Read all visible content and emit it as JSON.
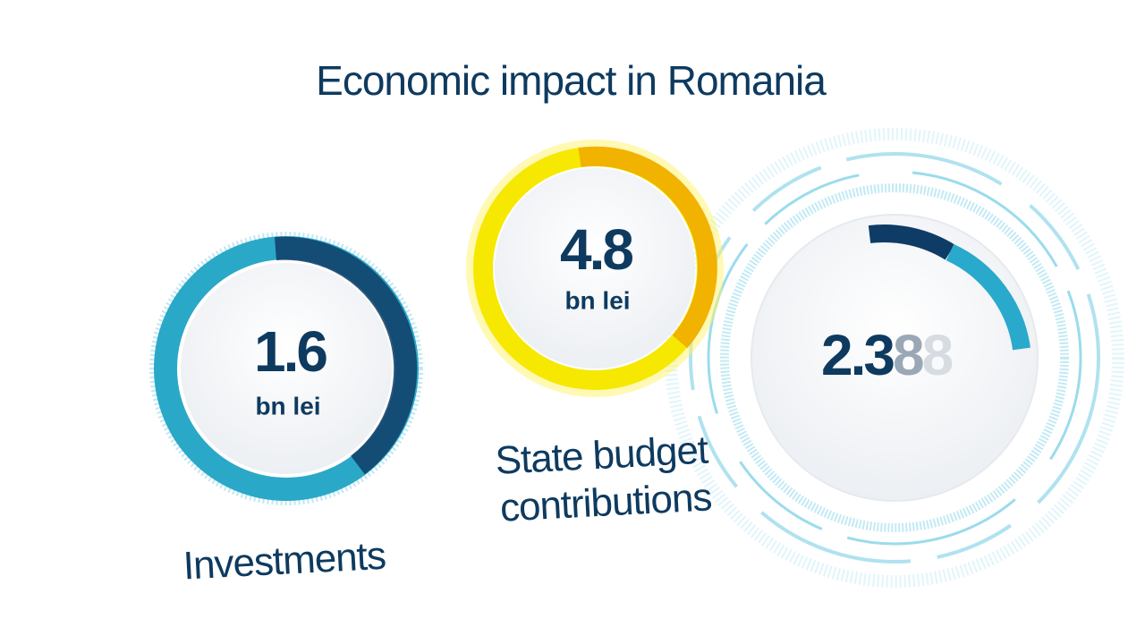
{
  "title": "Economic impact in Romania",
  "items": [
    {
      "value": "1.6",
      "unit": "bn lei",
      "label": [
        "Investments"
      ]
    },
    {
      "value": "4.8",
      "unit": "bn lei",
      "label": [
        "State budget",
        "contributions"
      ]
    },
    {
      "value_parts": [
        "2.3",
        "8",
        "8"
      ]
    }
  ]
}
